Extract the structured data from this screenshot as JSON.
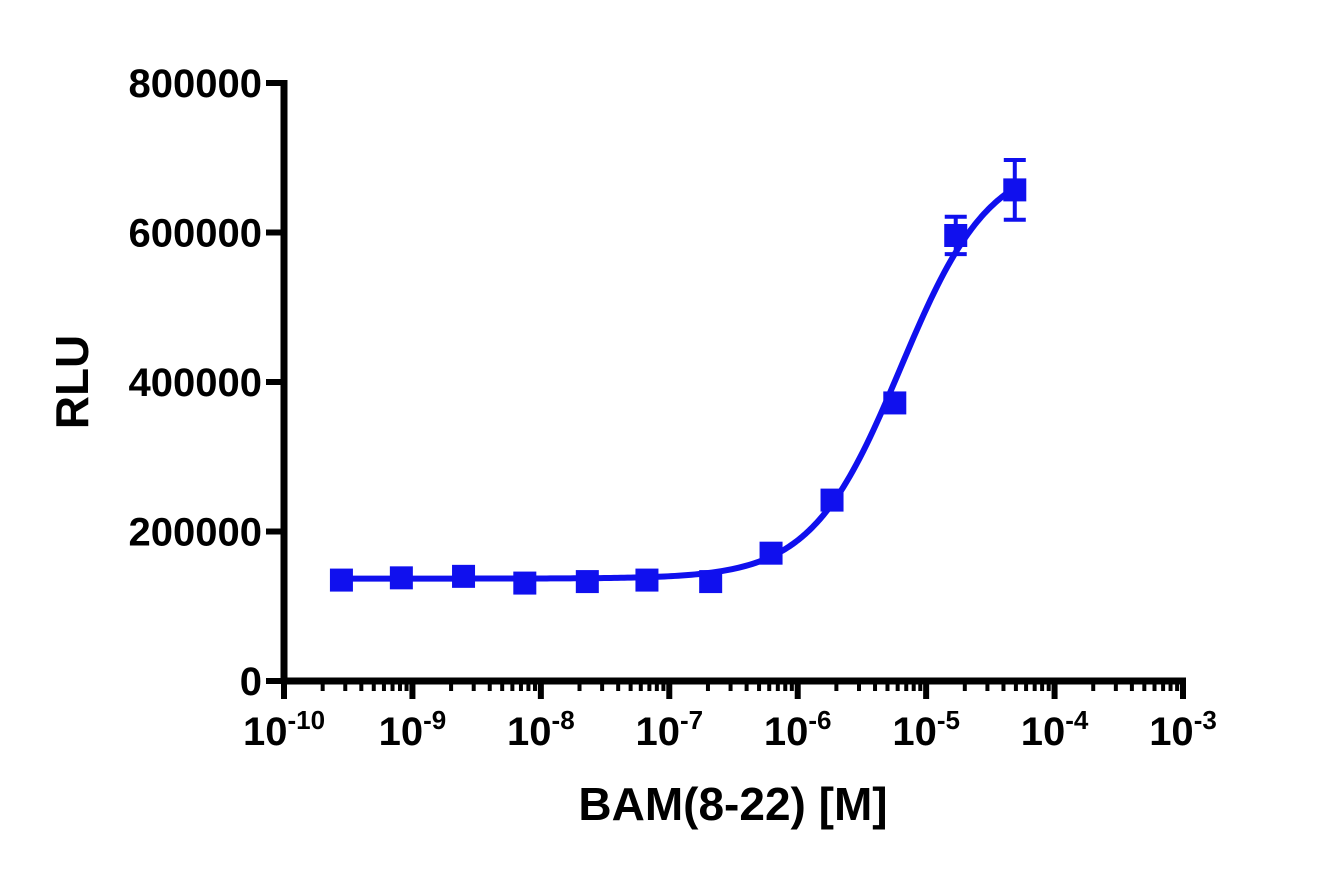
{
  "chart_data": {
    "type": "scatter",
    "xlabel": "BAM(8-22) [M]",
    "ylabel": "RLU",
    "xscale": "log",
    "xlim": [
      1e-10,
      0.001
    ],
    "ylim": [
      0,
      800000
    ],
    "grid": false,
    "legend": "none",
    "x_ticks": [
      {
        "base": "10",
        "exp": "-10",
        "value": 1e-10
      },
      {
        "base": "10",
        "exp": "-9",
        "value": 1e-09
      },
      {
        "base": "10",
        "exp": "-8",
        "value": 1e-08
      },
      {
        "base": "10",
        "exp": "-7",
        "value": 1e-07
      },
      {
        "base": "10",
        "exp": "-6",
        "value": 1e-06
      },
      {
        "base": "10",
        "exp": "-5",
        "value": 1e-05
      },
      {
        "base": "10",
        "exp": "-4",
        "value": 0.0001
      },
      {
        "base": "10",
        "exp": "-3",
        "value": 0.001
      }
    ],
    "y_ticks": [
      {
        "label": "0",
        "value": 0
      },
      {
        "label": "200000",
        "value": 200000
      },
      {
        "label": "400000",
        "value": 400000
      },
      {
        "label": "600000",
        "value": 600000
      },
      {
        "label": "800000",
        "value": 800000
      }
    ],
    "series": [
      {
        "color": "#1010ee",
        "marker": "square",
        "points": [
          {
            "x": 2.8e-10,
            "y": 135000,
            "err": 0
          },
          {
            "x": 8.2e-10,
            "y": 138000,
            "err": 0
          },
          {
            "x": 2.5e-09,
            "y": 140000,
            "err": 0
          },
          {
            "x": 7.5e-09,
            "y": 131000,
            "err": 0
          },
          {
            "x": 2.3e-08,
            "y": 133000,
            "err": 0
          },
          {
            "x": 6.7e-08,
            "y": 135000,
            "err": 0
          },
          {
            "x": 2.1e-07,
            "y": 133000,
            "err": 0
          },
          {
            "x": 6.2e-07,
            "y": 171000,
            "err": 0
          },
          {
            "x": 1.85e-06,
            "y": 242000,
            "err": 0
          },
          {
            "x": 5.7e-06,
            "y": 372000,
            "err": 0
          },
          {
            "x": 1.7e-05,
            "y": 596000,
            "err": 25000
          },
          {
            "x": 4.9e-05,
            "y": 657000,
            "err": 40000
          }
        ],
        "fit": {
          "model": "four-parameter-logistic",
          "bottom": 137000,
          "top": 700000,
          "log_ec50": -5.2,
          "hill": 1.25,
          "x_range": [
            2.8e-10,
            4.9e-05
          ]
        }
      }
    ]
  }
}
